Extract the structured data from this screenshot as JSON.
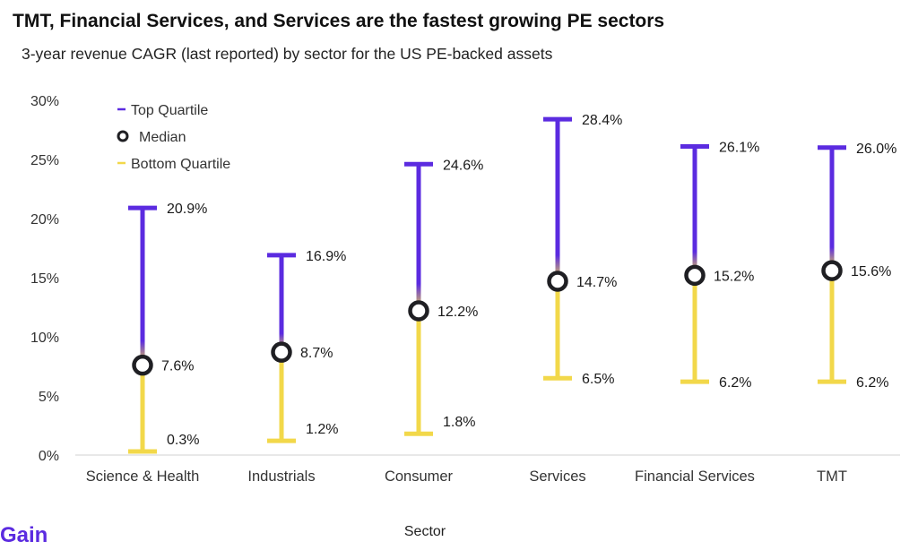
{
  "title": "TMT, Financial Services, and Services are the fastest growing PE sectors",
  "subtitle": "3-year revenue CAGR (last reported) by sector for the US PE-backed assets",
  "brand": {
    "name": "Gain",
    "color": "#5b2be0"
  },
  "colors": {
    "top": "#5b2be0",
    "bottom": "#f2d84a",
    "median_fill": "#ffffff",
    "median_stroke": "#1f1f23"
  },
  "chart_data": {
    "type": "range",
    "xlabel": "Sector",
    "ylabel": "",
    "ylim": [
      0,
      30
    ],
    "yticks": [
      0,
      5,
      10,
      15,
      20,
      25,
      30
    ],
    "ytick_labels": [
      "0%",
      "5%",
      "10%",
      "15%",
      "20%",
      "25%",
      "30%"
    ],
    "grid": false,
    "legend": {
      "placement": "top-left",
      "items": [
        "Top Quartile",
        "Median",
        "Bottom Quartile"
      ]
    },
    "categories": [
      "Science & Health",
      "Industrials",
      "Consumer",
      "Services",
      "Financial Services",
      "TMT"
    ],
    "series": [
      {
        "name": "Top Quartile",
        "values": [
          20.9,
          16.9,
          24.6,
          28.4,
          26.1,
          26.0
        ],
        "labels": [
          "20.9%",
          "16.9%",
          "24.6%",
          "28.4%",
          "26.1%",
          "26.0%"
        ]
      },
      {
        "name": "Median",
        "values": [
          7.6,
          8.7,
          12.2,
          14.7,
          15.2,
          15.6
        ],
        "labels": [
          "7.6%",
          "8.7%",
          "12.2%",
          "14.7%",
          "15.2%",
          "15.6%"
        ]
      },
      {
        "name": "Bottom Quartile",
        "values": [
          0.3,
          1.2,
          1.8,
          6.5,
          6.2,
          6.2
        ],
        "labels": [
          "0.3%",
          "1.2%",
          "1.8%",
          "6.5%",
          "6.2%",
          "6.2%"
        ]
      }
    ]
  }
}
